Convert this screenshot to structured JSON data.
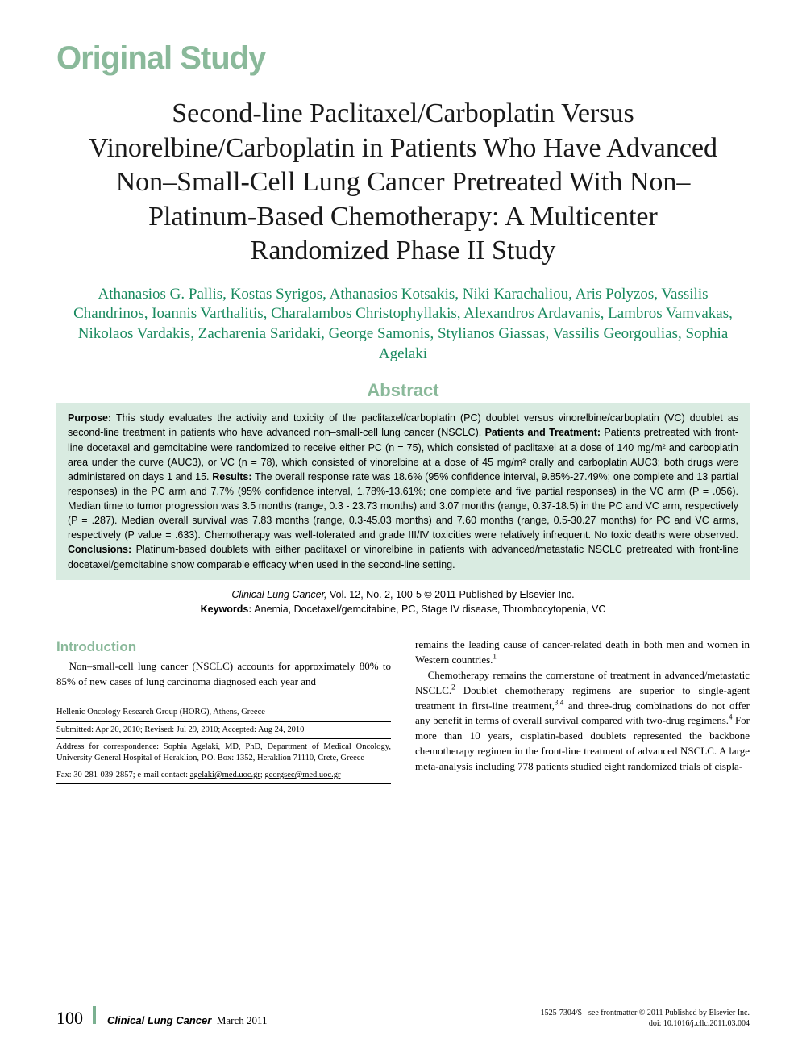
{
  "article_type": "Original Study",
  "title": "Second-line Paclitaxel/Carboplatin Versus Vinorelbine/Carboplatin in Patients Who Have Advanced Non–Small-Cell Lung Cancer Pretreated With Non–Platinum-Based Chemotherapy: A Multicenter Randomized Phase II Study",
  "authors": "Athanasios G. Pallis, Kostas Syrigos, Athanasios Kotsakis, Niki Karachaliou, Aris Polyzos, Vassilis Chandrinos, Ioannis Varthalitis, Charalambos Christophyllakis, Alexandros Ardavanis, Lambros Vamvakas, Nikolaos Vardakis, Zacharenia Saridaki, George Samonis, Stylianos Giassas, Vassilis Georgoulias, Sophia Agelaki",
  "abstract_heading": "Abstract",
  "abstract": {
    "purpose_label": "Purpose:",
    "purpose": " This study evaluates the activity and toxicity of the paclitaxel/carboplatin (PC) doublet versus vinorelbine/carboplatin (VC) doublet as second-line treatment in patients who have advanced non–small-cell lung cancer (NSCLC). ",
    "patients_label": "Patients and Treatment:",
    "patients": " Patients pretreated with front-line docetaxel and gemcitabine were randomized to receive either PC (n = 75), which consisted of paclitaxel at a dose of 140 mg/m² and carboplatin area under the curve (AUC3), or VC (n = 78), which consisted of vinorelbine at a dose of 45 mg/m² orally and carboplatin AUC3; both drugs were administered on days 1 and 15. ",
    "results_label": "Results:",
    "results": " The overall response rate was 18.6% (95% confidence interval, 9.85%-27.49%; one complete and 13 partial responses) in the PC arm and 7.7% (95% confidence interval, 1.78%-13.61%; one complete and five partial responses) in the VC arm (P = .056). Median time to tumor progression was 3.5 months (range, 0.3 - 23.73 months) and 3.07 months (range, 0.37-18.5) in the PC and VC arm, respectively (P = .287). Median overall survival was 7.83 months (range, 0.3-45.03 months) and 7.60 months (range, 0.5-30.27 months) for PC and VC arms, respectively (P value = .633). Chemotherapy was well-tolerated and grade III/IV toxicities were relatively infrequent. No toxic deaths were observed. ",
    "conclusions_label": "Conclusions:",
    "conclusions": " Platinum-based doublets with either paclitaxel or vinorelbine in patients with advanced/metastatic NSCLC pretreated with front-line docetaxel/gemcitabine show comparable efficacy when used in the second-line setting."
  },
  "citation": {
    "journal": "Clinical Lung Cancer,",
    "vol": " Vol. 12, No. 2, 100-5 © 2011 Published by Elsevier Inc."
  },
  "keywords_label": "Keywords:",
  "keywords": " Anemia, Docetaxel/gemcitabine, PC, Stage IV disease, Thrombocytopenia, VC",
  "intro_heading": "Introduction",
  "intro_p1": "Non–small-cell lung cancer (NSCLC) accounts for approximately 80% to 85% of new cases of lung carcinoma diagnosed each year and",
  "col2_p1": "remains the leading cause of cancer-related death in both men and women in Western countries.",
  "col2_p2_a": "Chemotherapy remains the cornerstone of treatment in advanced/metastatic NSCLC.",
  "col2_p2_b": " Doublet chemotherapy regimens are superior to single-agent treatment in first-line treatment,",
  "col2_p2_c": " and three-drug combinations do not offer any benefit in terms of overall survival compared with two-drug regimens.",
  "col2_p2_d": " For more than 10 years, cisplatin-based doublets represented the backbone chemotherapy regimen in the front-line treatment of advanced NSCLC. A large meta-analysis including 778 patients studied eight randomized trials of cispla-",
  "footnotes": {
    "affiliation": "Hellenic Oncology Research Group (HORG), Athens, Greece",
    "dates": "Submitted: Apr 20, 2010; Revised: Jul 29, 2010; Accepted: Aug 24, 2010",
    "correspondence": "Address for correspondence: Sophia Agelaki, MD, PhD, Department of Medical Oncology, University General Hospital of Heraklion, P.O. Box: 1352, Heraklion 71110, Crete, Greece",
    "contact_prefix": "Fax: 30-281-039-2857; e-mail contact: ",
    "email1": "agelaki@med.uoc.gr",
    "email_sep": "; ",
    "email2": "georgsec@med.uoc.gr"
  },
  "footer": {
    "page_number": "100",
    "journal_name": "Clinical Lung Cancer",
    "issue_date": "March 2011",
    "copyright_line1": "1525-7304/$ - see frontmatter © 2011 Published by Elsevier Inc.",
    "copyright_line2": "doi: 10.1016/j.cllc.2011.03.004"
  },
  "colors": {
    "section_green": "#8ab99a",
    "author_green": "#1a8a5f",
    "abstract_bg": "#d9ebe1"
  }
}
